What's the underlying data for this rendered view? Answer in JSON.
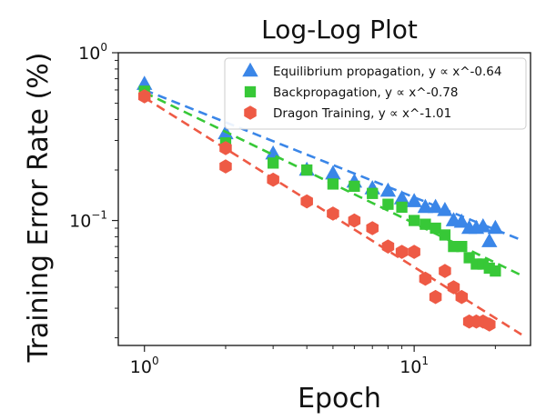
{
  "chart_data": {
    "type": "scatter",
    "title": "Log-Log Plot",
    "xlabel": "Epoch",
    "ylabel": "Training Error Rate (%)",
    "xscale": "log",
    "yscale": "log",
    "xlim": [
      0.8,
      27
    ],
    "ylim": [
      0.018,
      1.0
    ],
    "x_ticks": [
      {
        "value": 1,
        "base": "10",
        "exp": "0"
      },
      {
        "value": 10,
        "base": "10",
        "exp": "1"
      }
    ],
    "y_ticks": [
      {
        "value": 1,
        "base": "10",
        "exp": "0"
      },
      {
        "value": 0.1,
        "base": "10",
        "exp": "−1"
      }
    ],
    "legend_position": "top-right",
    "series": [
      {
        "name": "Equilibrium propagation, y ∝ x^-0.64",
        "marker": "triangle",
        "color": "#3a86e8",
        "fit": {
          "a": 0.6,
          "b": -0.64
        },
        "x": [
          1,
          2,
          3,
          4,
          5,
          6,
          7,
          8,
          9,
          10,
          11,
          12,
          13,
          14,
          15,
          16,
          17,
          18,
          19,
          20
        ],
        "y": [
          0.65,
          0.33,
          0.25,
          0.2,
          0.19,
          0.17,
          0.155,
          0.15,
          0.135,
          0.13,
          0.12,
          0.12,
          0.115,
          0.1,
          0.098,
          0.09,
          0.09,
          0.092,
          0.075,
          0.09
        ]
      },
      {
        "name": "Backpropagation, y ∝ x^-0.78",
        "marker": "square",
        "color": "#37c837",
        "fit": {
          "a": 0.58,
          "b": -0.78
        },
        "x": [
          1,
          2,
          3,
          4,
          5,
          6,
          7,
          8,
          9,
          10,
          11,
          12,
          13,
          14,
          15,
          16,
          17,
          18,
          19,
          20
        ],
        "y": [
          0.59,
          0.29,
          0.22,
          0.2,
          0.165,
          0.16,
          0.145,
          0.125,
          0.12,
          0.1,
          0.095,
          0.09,
          0.082,
          0.07,
          0.07,
          0.06,
          0.055,
          0.055,
          0.052,
          0.05
        ]
      },
      {
        "name": "Dragon Training, y ∝ x^-1.01",
        "marker": "hexagon",
        "color": "#ee5a45",
        "fit": {
          "a": 0.54,
          "b": -1.01
        },
        "x": [
          1,
          2,
          2,
          3,
          4,
          5,
          6,
          7,
          8,
          9,
          10,
          11,
          12,
          13,
          14,
          15,
          16,
          17,
          18,
          19
        ],
        "y": [
          0.55,
          0.27,
          0.21,
          0.175,
          0.13,
          0.11,
          0.1,
          0.09,
          0.07,
          0.065,
          0.065,
          0.045,
          0.035,
          0.05,
          0.04,
          0.035,
          0.025,
          0.025,
          0.025,
          0.024
        ]
      }
    ]
  }
}
